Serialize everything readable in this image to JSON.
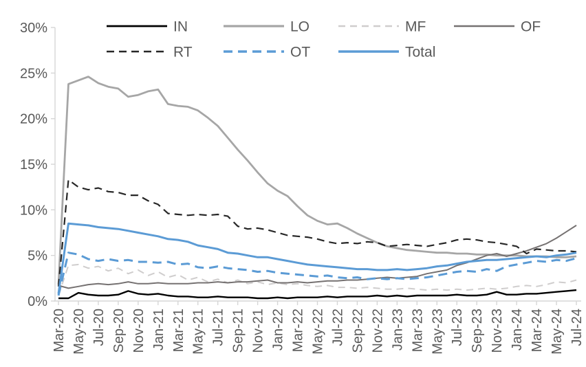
{
  "chart_data": {
    "type": "line",
    "title": "",
    "xlabel": "",
    "ylabel": "",
    "grid": false,
    "legend_position": "top",
    "legend_rows": [
      [
        "IN",
        "LO",
        "MF",
        "OF"
      ],
      [
        "RT",
        "OT",
        "Total"
      ]
    ],
    "axis_color": "#D6D6D6",
    "label_color": "#595959",
    "y_range": [
      0,
      30
    ],
    "y_tick_step": 5,
    "y_tick_labels": [
      "0%",
      "5%",
      "10%",
      "15%",
      "20%",
      "25%",
      "30%"
    ],
    "x_tick_every": 2,
    "x": [
      "Mar-20",
      "Apr-20",
      "May-20",
      "Jun-20",
      "Jul-20",
      "Aug-20",
      "Sep-20",
      "Oct-20",
      "Nov-20",
      "Dec-20",
      "Jan-21",
      "Feb-21",
      "Mar-21",
      "Apr-21",
      "May-21",
      "Jun-21",
      "Jul-21",
      "Aug-21",
      "Sep-21",
      "Oct-21",
      "Nov-21",
      "Dec-21",
      "Jan-22",
      "Feb-22",
      "Mar-22",
      "Apr-22",
      "May-22",
      "Jun-22",
      "Jul-22",
      "Aug-22",
      "Sep-22",
      "Oct-22",
      "Nov-22",
      "Dec-22",
      "Jan-23",
      "Feb-23",
      "Mar-23",
      "Apr-23",
      "May-23",
      "Jun-23",
      "Jul-23",
      "Aug-23",
      "Sep-23",
      "Oct-23",
      "Nov-23",
      "Dec-23",
      "Jan-24",
      "Feb-24",
      "Mar-24",
      "Apr-24",
      "May-24",
      "Jun-24",
      "Jul-24"
    ],
    "series": [
      {
        "name": "IN",
        "color": "#000000",
        "style": "solid",
        "width": 2.4,
        "values": [
          0.3,
          0.3,
          0.9,
          0.7,
          0.6,
          0.6,
          0.7,
          1.1,
          0.8,
          0.7,
          0.8,
          0.6,
          0.5,
          0.5,
          0.4,
          0.4,
          0.5,
          0.4,
          0.4,
          0.4,
          0.3,
          0.3,
          0.4,
          0.3,
          0.4,
          0.4,
          0.4,
          0.5,
          0.4,
          0.5,
          0.5,
          0.5,
          0.6,
          0.5,
          0.6,
          0.5,
          0.6,
          0.6,
          0.6,
          0.6,
          0.7,
          0.6,
          0.6,
          0.7,
          1.0,
          0.7,
          0.7,
          0.8,
          0.8,
          0.9,
          1.0,
          1.1,
          1.2
        ]
      },
      {
        "name": "LO",
        "color": "#A6A6A6",
        "style": "solid",
        "width": 2.8,
        "values": [
          1.8,
          23.8,
          24.2,
          24.6,
          23.9,
          23.5,
          23.3,
          22.4,
          22.6,
          23.0,
          23.2,
          21.6,
          21.4,
          21.3,
          20.9,
          20.1,
          19.2,
          17.9,
          16.6,
          15.4,
          14.1,
          12.9,
          12.1,
          11.5,
          10.4,
          9.4,
          8.8,
          8.4,
          8.5,
          8.0,
          7.4,
          6.9,
          6.4,
          6.0,
          5.8,
          5.6,
          5.5,
          5.4,
          5.3,
          5.3,
          5.2,
          5.2,
          5.1,
          5.1,
          5.0,
          5.0,
          5.0,
          4.9,
          4.9,
          4.9,
          4.8,
          4.8,
          4.9
        ]
      },
      {
        "name": "MF",
        "color": "#CFCDCD",
        "style": "dashed",
        "width": 2.0,
        "values": [
          0.6,
          3.9,
          4.0,
          3.6,
          3.8,
          3.3,
          3.6,
          3.0,
          3.4,
          2.8,
          3.2,
          2.6,
          2.9,
          2.3,
          2.6,
          2.1,
          2.4,
          2.0,
          2.3,
          1.9,
          2.1,
          1.8,
          2.0,
          1.8,
          1.9,
          1.7,
          1.6,
          1.7,
          1.5,
          1.5,
          1.4,
          1.5,
          1.4,
          1.3,
          1.3,
          1.4,
          1.3,
          1.2,
          1.3,
          1.2,
          1.3,
          1.2,
          1.3,
          1.4,
          1.3,
          1.4,
          1.6,
          1.7,
          1.6,
          1.8,
          2.1,
          2.0,
          2.3
        ]
      },
      {
        "name": "OF",
        "color": "#757171",
        "style": "solid",
        "width": 2.0,
        "values": [
          1.7,
          1.4,
          1.6,
          1.8,
          1.9,
          1.8,
          1.9,
          2.1,
          1.9,
          1.9,
          2.0,
          1.9,
          1.9,
          1.9,
          2.0,
          2.0,
          2.1,
          2.0,
          2.1,
          2.1,
          2.2,
          2.3,
          2.0,
          2.0,
          2.1,
          2.0,
          2.1,
          2.2,
          2.2,
          2.3,
          2.3,
          2.4,
          2.5,
          2.6,
          2.5,
          2.6,
          2.7,
          3.0,
          3.2,
          3.4,
          3.9,
          4.2,
          4.6,
          5.0,
          5.2,
          4.9,
          5.2,
          5.5,
          5.9,
          6.3,
          6.9,
          7.6,
          8.3
        ]
      },
      {
        "name": "RT",
        "color": "#262626",
        "style": "dashed",
        "width": 2.2,
        "values": [
          1.6,
          13.3,
          12.5,
          12.2,
          12.4,
          12.0,
          11.9,
          11.6,
          11.6,
          11.0,
          10.6,
          9.6,
          9.5,
          9.4,
          9.5,
          9.4,
          9.5,
          9.3,
          8.2,
          7.9,
          8.0,
          7.8,
          7.5,
          7.2,
          7.1,
          7.0,
          6.8,
          6.5,
          6.3,
          6.4,
          6.3,
          6.5,
          6.4,
          6.0,
          6.1,
          6.2,
          6.1,
          6.0,
          6.2,
          6.4,
          6.7,
          6.8,
          6.7,
          6.5,
          6.4,
          6.2,
          6.0,
          5.2,
          5.7,
          5.6,
          5.5,
          5.5,
          5.4
        ]
      },
      {
        "name": "OT",
        "color": "#5B9BD5",
        "style": "dashed",
        "width": 3.0,
        "values": [
          0.6,
          5.3,
          5.1,
          4.6,
          4.4,
          4.6,
          4.4,
          4.5,
          4.3,
          4.3,
          4.2,
          4.3,
          4.0,
          4.1,
          3.7,
          3.6,
          3.8,
          3.6,
          3.5,
          3.4,
          3.2,
          3.3,
          3.1,
          3.0,
          2.9,
          2.8,
          2.7,
          2.8,
          2.6,
          2.5,
          2.6,
          2.4,
          2.5,
          2.4,
          2.5,
          2.4,
          2.5,
          2.6,
          2.8,
          3.0,
          3.2,
          3.3,
          3.2,
          3.5,
          3.3,
          3.8,
          4.0,
          4.2,
          4.4,
          4.3,
          4.5,
          4.4,
          4.7
        ]
      },
      {
        "name": "Total",
        "color": "#5B9BD5",
        "style": "solid",
        "width": 3.0,
        "values": [
          0.8,
          8.5,
          8.4,
          8.3,
          8.1,
          8.0,
          7.9,
          7.7,
          7.5,
          7.3,
          7.1,
          6.8,
          6.7,
          6.5,
          6.1,
          5.9,
          5.7,
          5.3,
          5.2,
          5.0,
          4.8,
          4.8,
          4.6,
          4.4,
          4.2,
          4.0,
          3.9,
          3.8,
          3.7,
          3.6,
          3.5,
          3.5,
          3.4,
          3.4,
          3.5,
          3.4,
          3.5,
          3.6,
          3.8,
          3.9,
          4.1,
          4.3,
          4.4,
          4.5,
          4.5,
          4.6,
          4.7,
          4.8,
          4.9,
          4.8,
          5.0,
          5.1,
          5.3
        ]
      }
    ]
  }
}
